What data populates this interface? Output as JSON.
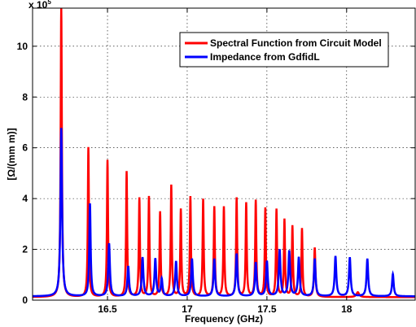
{
  "chart_data": {
    "type": "line",
    "title": "",
    "xlabel": "Frequency (GHz)",
    "ylabel": "[Ω/(mm m)]",
    "y_exponent_label": "x 10",
    "y_exponent_power": "5",
    "xlim": [
      16.03,
      18.43
    ],
    "ylim": [
      0,
      11.5
    ],
    "x_ticks": [
      16.5,
      17,
      17.5,
      18
    ],
    "x_tick_labels": [
      "16.5",
      "17",
      "17.5",
      "18"
    ],
    "y_ticks": [
      0,
      2,
      4,
      6,
      8,
      10
    ],
    "y_tick_labels": [
      "0",
      "2",
      "4",
      "6",
      "8",
      "10"
    ],
    "grid": true,
    "legend_position": "top-right",
    "series": [
      {
        "name": "Spectral Function from Circuit Model",
        "color": "#ff0000",
        "baseline": 0.12,
        "peaks": [
          [
            16.21,
            11.45,
            0.0045
          ],
          [
            16.38,
            5.95,
            0.004
          ],
          [
            16.5,
            5.45,
            0.004
          ],
          [
            16.62,
            5.0,
            0.004
          ],
          [
            16.7,
            3.95,
            0.004
          ],
          [
            16.76,
            4.0,
            0.004
          ],
          [
            16.83,
            3.4,
            0.004
          ],
          [
            16.9,
            4.45,
            0.004
          ],
          [
            16.96,
            3.5,
            0.004
          ],
          [
            17.02,
            4.0,
            0.004
          ],
          [
            17.1,
            3.9,
            0.004
          ],
          [
            17.17,
            3.6,
            0.004
          ],
          [
            17.23,
            3.6,
            0.004
          ],
          [
            17.31,
            3.95,
            0.004
          ],
          [
            17.37,
            3.75,
            0.004
          ],
          [
            17.43,
            3.85,
            0.004
          ],
          [
            17.49,
            3.55,
            0.004
          ],
          [
            17.56,
            3.5,
            0.004
          ],
          [
            17.61,
            3.1,
            0.004
          ],
          [
            17.66,
            2.85,
            0.004
          ],
          [
            17.72,
            2.75,
            0.004
          ],
          [
            17.8,
            2.0,
            0.005
          ],
          [
            18.07,
            0.25,
            0.01
          ]
        ]
      },
      {
        "name": "Impedance from GdfidL",
        "color": "#0000ff",
        "baseline": 0.15,
        "peaks": [
          [
            16.21,
            6.7,
            0.006
          ],
          [
            16.39,
            3.72,
            0.005
          ],
          [
            16.51,
            2.15,
            0.006
          ],
          [
            16.63,
            1.25,
            0.006
          ],
          [
            16.72,
            1.6,
            0.006
          ],
          [
            16.8,
            1.55,
            0.006
          ],
          [
            16.84,
            0.75,
            0.006
          ],
          [
            16.93,
            1.45,
            0.006
          ],
          [
            17.03,
            1.55,
            0.006
          ],
          [
            17.17,
            1.55,
            0.006
          ],
          [
            17.31,
            1.75,
            0.006
          ],
          [
            17.43,
            1.4,
            0.006
          ],
          [
            17.5,
            1.45,
            0.006
          ],
          [
            17.58,
            1.9,
            0.006
          ],
          [
            17.64,
            1.85,
            0.006
          ],
          [
            17.7,
            1.6,
            0.006
          ],
          [
            17.8,
            1.55,
            0.006
          ],
          [
            17.93,
            1.65,
            0.006
          ],
          [
            18.02,
            1.6,
            0.006
          ],
          [
            18.13,
            1.55,
            0.006
          ],
          [
            18.29,
            0.95,
            0.006
          ]
        ]
      }
    ]
  }
}
